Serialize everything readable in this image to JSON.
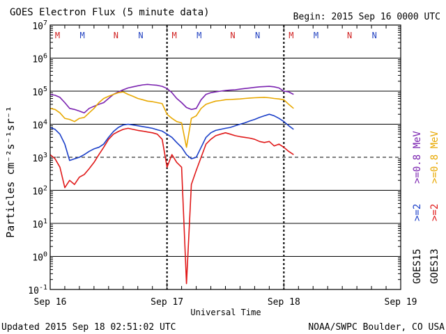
{
  "chart_data": {
    "type": "line",
    "title": "GOES Electron Flux (5 minute data)",
    "begin_label": "Begin: 2015 Sep 16 0000 UTC",
    "xlabel": "Universal Time",
    "ylabel": "Particles cm⁻²s⁻¹sr⁻¹",
    "yscale": "log",
    "ylim": [
      0.1,
      10000000
    ],
    "xlim": [
      0,
      72
    ],
    "x_unit": "hours since 2015 Sep 16 00:00 UTC",
    "y_ticks": [
      {
        "value": 10000000,
        "base": "10",
        "exp": "7"
      },
      {
        "value": 1000000,
        "base": "10",
        "exp": "6"
      },
      {
        "value": 100000,
        "base": "10",
        "exp": "5"
      },
      {
        "value": 10000,
        "base": "10",
        "exp": "4"
      },
      {
        "value": 1000,
        "base": "10",
        "exp": "3"
      },
      {
        "value": 100,
        "base": "10",
        "exp": "2"
      },
      {
        "value": 10,
        "base": "10",
        "exp": "1"
      },
      {
        "value": 1,
        "base": "10",
        "exp": "0"
      },
      {
        "value": 0.1,
        "base": "10",
        "exp": "-1"
      }
    ],
    "x_ticks": [
      {
        "value": 0,
        "label": "Sep 16"
      },
      {
        "value": 24,
        "label": "Sep 17"
      },
      {
        "value": 48,
        "label": "Sep 18"
      },
      {
        "value": 72,
        "label": "Sep 19"
      }
    ],
    "alert_threshold": 1000,
    "midnight_markers": {
      "GOES13": [
        1.5,
        25.5,
        49.5
      ],
      "GOES15": [
        6.6,
        30.6,
        54.6
      ]
    },
    "noon_markers": {
      "GOES13": [
        13.5,
        37.5,
        61.5
      ],
      "GOES15": [
        18.6,
        42.6,
        66.6
      ]
    },
    "marker_labels": {
      "GOES13_midnight": {
        "text": "M",
        "color": "#d02020"
      },
      "GOES15_midnight": {
        "text": "M",
        "color": "#2040c0"
      },
      "GOES13_noon": {
        "text": "N",
        "color": "#d02020"
      },
      "GOES15_noon": {
        "text": "N",
        "color": "#2040c0"
      }
    },
    "legend": {
      "placement": "right-vertical",
      "satellites": [
        "GOES15",
        "GOES13"
      ],
      "entries": [
        {
          "label": ">=0.8 MeV",
          "color": "#7a22b0"
        },
        {
          "label": ">=0.8 MeV",
          "color": "#e8a800"
        },
        {
          "label": ">=2",
          "color": "#1a3ec8"
        },
        {
          "label": ">=2",
          "color": "#e01818"
        }
      ]
    },
    "series": [
      {
        "name": "GOES15 >=0.8 MeV",
        "color": "#7a22b0",
        "x": [
          0,
          1,
          2,
          3,
          4,
          5,
          6,
          7,
          8,
          9,
          10,
          11,
          12,
          13,
          14,
          15,
          16,
          17,
          18,
          19,
          20,
          21,
          22,
          23,
          24,
          25,
          26,
          27,
          28,
          29,
          30,
          31,
          32,
          33,
          34,
          35,
          36,
          37,
          38,
          39,
          40,
          41,
          42,
          43,
          44,
          45,
          46,
          47,
          48,
          49,
          50
        ],
        "y": [
          80000,
          75000,
          65000,
          45000,
          30000,
          28000,
          25000,
          22000,
          30000,
          35000,
          40000,
          45000,
          60000,
          80000,
          95000,
          110000,
          125000,
          135000,
          145000,
          155000,
          160000,
          155000,
          150000,
          140000,
          120000,
          90000,
          60000,
          45000,
          32000,
          28000,
          30000,
          55000,
          80000,
          90000,
          95000,
          100000,
          105000,
          108000,
          110000,
          115000,
          120000,
          125000,
          130000,
          135000,
          138000,
          140000,
          135000,
          125000,
          100000,
          95000,
          80000
        ]
      },
      {
        "name": "GOES13 >=0.8 MeV",
        "color": "#e8a800",
        "x": [
          0,
          1,
          2,
          3,
          4,
          5,
          6,
          7,
          8,
          9,
          10,
          11,
          12,
          13,
          14,
          15,
          16,
          17,
          18,
          19,
          20,
          21,
          22,
          23,
          24,
          25,
          26,
          27,
          28,
          29,
          30,
          31,
          32,
          33,
          34,
          35,
          36,
          37,
          38,
          39,
          40,
          41,
          42,
          43,
          44,
          45,
          46,
          47,
          48,
          49,
          50
        ],
        "y": [
          30000,
          28000,
          22000,
          15000,
          14000,
          12000,
          15000,
          16000,
          22000,
          30000,
          45000,
          60000,
          70000,
          80000,
          90000,
          95000,
          80000,
          70000,
          60000,
          55000,
          50000,
          48000,
          45000,
          42000,
          20000,
          15000,
          12000,
          11000,
          2000,
          15000,
          18000,
          30000,
          40000,
          45000,
          50000,
          52000,
          55000,
          56000,
          57000,
          58000,
          60000,
          62000,
          63000,
          64000,
          65000,
          63000,
          60000,
          58000,
          55000,
          40000,
          30000
        ]
      },
      {
        "name": "GOES15 >=2 MeV",
        "color": "#1a3ec8",
        "x": [
          0,
          1,
          2,
          3,
          4,
          5,
          6,
          7,
          8,
          9,
          10,
          11,
          12,
          13,
          14,
          15,
          16,
          17,
          18,
          19,
          20,
          21,
          22,
          23,
          24,
          25,
          26,
          27,
          28,
          29,
          30,
          31,
          32,
          33,
          34,
          35,
          36,
          37,
          38,
          39,
          40,
          41,
          42,
          43,
          44,
          45,
          46,
          47,
          48,
          49,
          50
        ],
        "y": [
          8000,
          7000,
          5000,
          2500,
          800,
          900,
          1000,
          1200,
          1500,
          1800,
          2000,
          2500,
          4000,
          6000,
          8000,
          9500,
          10000,
          9500,
          9000,
          8500,
          8000,
          7500,
          6800,
          6200,
          5000,
          4000,
          2800,
          2000,
          1200,
          900,
          1000,
          2000,
          4000,
          5500,
          6500,
          7000,
          7500,
          8000,
          9000,
          10000,
          11000,
          12500,
          14000,
          16000,
          18000,
          20000,
          18000,
          15000,
          12000,
          9000,
          7000
        ]
      },
      {
        "name": "GOES13 >=2 MeV",
        "color": "#e01818",
        "x": [
          0,
          1,
          2,
          3,
          4,
          5,
          6,
          7,
          8,
          9,
          10,
          11,
          12,
          13,
          14,
          15,
          16,
          17,
          18,
          19,
          20,
          21,
          22,
          23,
          24,
          25,
          26,
          27,
          28,
          29,
          30,
          31,
          32,
          33,
          34,
          35,
          36,
          37,
          38,
          39,
          40,
          41,
          42,
          43,
          44,
          45,
          46,
          47,
          48,
          49,
          50
        ],
        "y": [
          1200,
          900,
          500,
          120,
          200,
          150,
          250,
          300,
          450,
          700,
          1200,
          2000,
          3500,
          5000,
          6000,
          7000,
          7500,
          7000,
          6500,
          6200,
          5800,
          5500,
          5000,
          3500,
          500,
          1200,
          700,
          500,
          0.15,
          150,
          400,
          1000,
          2500,
          3500,
          4500,
          5000,
          5500,
          5000,
          4500,
          4200,
          4000,
          3800,
          3500,
          3000,
          2800,
          3000,
          2200,
          2500,
          2000,
          1500,
          1200
        ]
      }
    ]
  },
  "footer": {
    "updated": "Updated 2015 Sep 18 02:51:02 UTC",
    "credit": "NOAA/SWPC Boulder, CO USA"
  }
}
